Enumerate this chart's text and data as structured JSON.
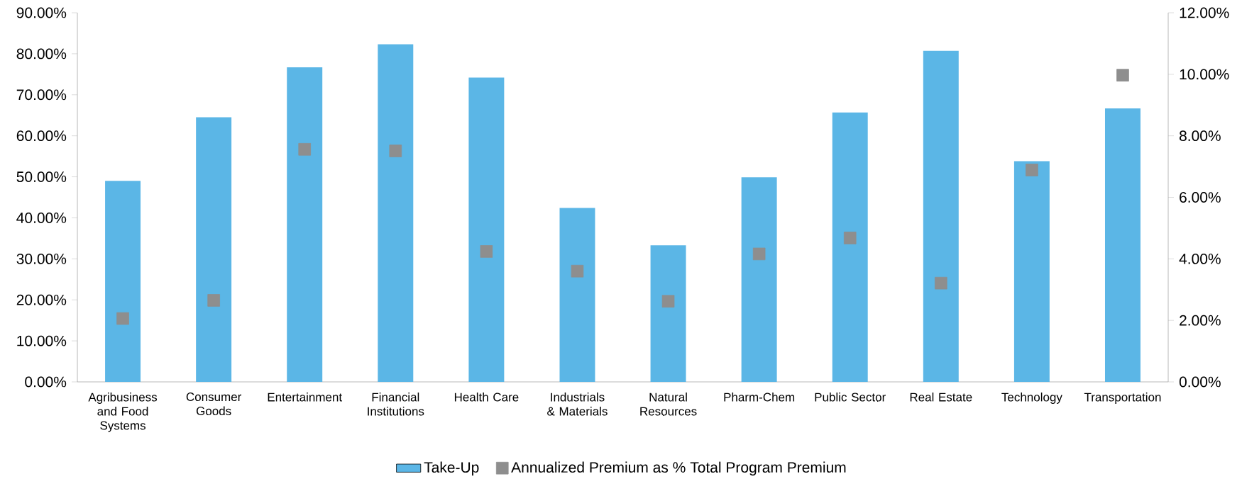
{
  "chart_data": {
    "type": "bar",
    "categories": [
      "Agribusiness and Food Systems",
      "Consumer Goods",
      "Entertainment",
      "Financial Institutions",
      "Health Care",
      "Industrials & Materials",
      "Natural Resources",
      "Pharm-Chem",
      "Public Sector",
      "Real Estate",
      "Technology",
      "Transportation"
    ],
    "series": [
      {
        "name": "Take-Up",
        "color": "#5bb6e6",
        "values": [
          49.0,
          64.5,
          76.7,
          82.3,
          74.2,
          42.4,
          33.3,
          49.9,
          65.7,
          80.7,
          53.8,
          66.7
        ]
      },
      {
        "name": "Annualized Premium as % Total Program Premium",
        "type": "scatter",
        "axis": "y2",
        "color": "#8e8e8e",
        "values": [
          2.06,
          2.65,
          7.56,
          7.51,
          4.24,
          3.6,
          2.62,
          4.16,
          4.68,
          3.21,
          6.89,
          9.97
        ]
      }
    ],
    "marker": "square",
    "ylim": [
      0,
      90
    ],
    "yticks": [
      {
        "value": 0,
        "label": "0.00%"
      },
      {
        "value": 10,
        "label": "10.00%"
      },
      {
        "value": 20,
        "label": "20.00%"
      },
      {
        "value": 30,
        "label": "30.00%"
      },
      {
        "value": 40,
        "label": "40.00%"
      },
      {
        "value": 50,
        "label": "50.00%"
      },
      {
        "value": 60,
        "label": "60.00%"
      },
      {
        "value": 70,
        "label": "70.00%"
      },
      {
        "value": 80,
        "label": "80.00%"
      },
      {
        "value": 90,
        "label": "90.00%"
      }
    ],
    "y2lim": [
      0,
      12
    ],
    "y2ticks": [
      {
        "value": 0,
        "label": "0.00%"
      },
      {
        "value": 2,
        "label": "2.00%"
      },
      {
        "value": 4,
        "label": "4.00%"
      },
      {
        "value": 6,
        "label": "6.00%"
      },
      {
        "value": 8,
        "label": "8.00%"
      },
      {
        "value": 10,
        "label": "10.00%"
      },
      {
        "value": 12,
        "label": "12.00%"
      }
    ],
    "legend": "bottom"
  }
}
